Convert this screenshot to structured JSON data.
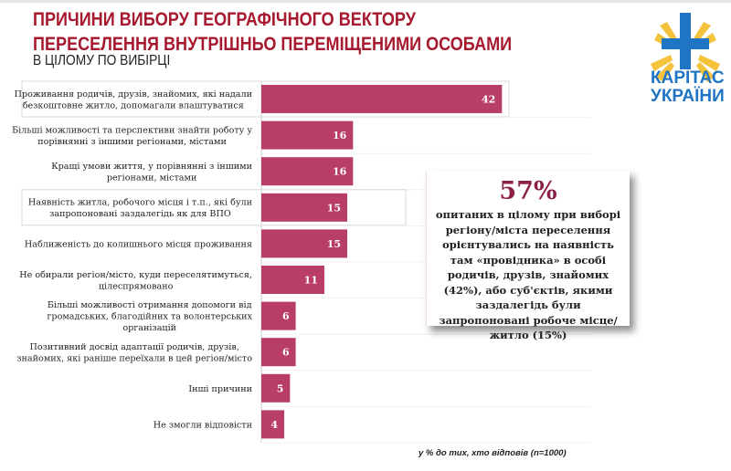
{
  "header": {
    "title_line1": "ПРИЧИНИ ВИБОРУ ГЕОГРАФІЧНОГО ВЕКТОРУ",
    "title_line2": "ПЕРЕСЕЛЕННЯ ВНУТРІШНЬО ПЕРЕМІЩЕНИМИ ОСОБАМИ",
    "subtitle": "В ЦІЛОМУ ПО ВИБІРЦІ"
  },
  "logo": {
    "line1": "КАРІТАС",
    "line2": "УКРАЇНИ",
    "colors": {
      "blue": "#1f75c4",
      "yellow": "#f5c33b"
    }
  },
  "callout": {
    "value": "57%",
    "text": "опитаних в цілому при виборі регіону/міста переселення орієнтувались на наявність там «провідника» в особі родичів, друзів, знайомих (42%), або суб'єктів, якими заздалегідь були запропоновані робоче місце/житло (15%)"
  },
  "footnote": "у % до тих, хто відповів (n=1000)",
  "chart_data": {
    "type": "bar",
    "orientation": "horizontal",
    "bar_color": "#b83d68",
    "categories": [
      [
        "Проживання родичів, друзів, знайомих, які надали",
        "безкоштовне житло, допомагали влаштуватися"
      ],
      [
        "Більші можливості та перспективи знайти роботу у",
        "порівнянні з іншими регіонами, містами"
      ],
      [
        "Кращі умови життя, у порівнянні з іншими",
        "регіонами, містами"
      ],
      [
        "Наявність житла, робочого місця і т.п., які були",
        "запропоновані заздалегідь як для ВПО"
      ],
      [
        "Наближеність до колишнього місця проживання"
      ],
      [
        "Не обирали регіон/місто, куди переселятимуться,",
        "цілеспрямовано"
      ],
      [
        "Більші можливості отримання допомоги від",
        "громадських, благодійних та волонтерських",
        "організацій"
      ],
      [
        "Позитивний досвід адаптації родичів, друзів,",
        "знайомих, які раніше переїхали в цей регіон/місто"
      ],
      [
        "Інші причини"
      ],
      [
        "Не змогли відповісти"
      ]
    ],
    "values": [
      42,
      16,
      16,
      15,
      15,
      11,
      6,
      6,
      5,
      4
    ],
    "highlighted": [
      0,
      3
    ],
    "unit": "%"
  }
}
